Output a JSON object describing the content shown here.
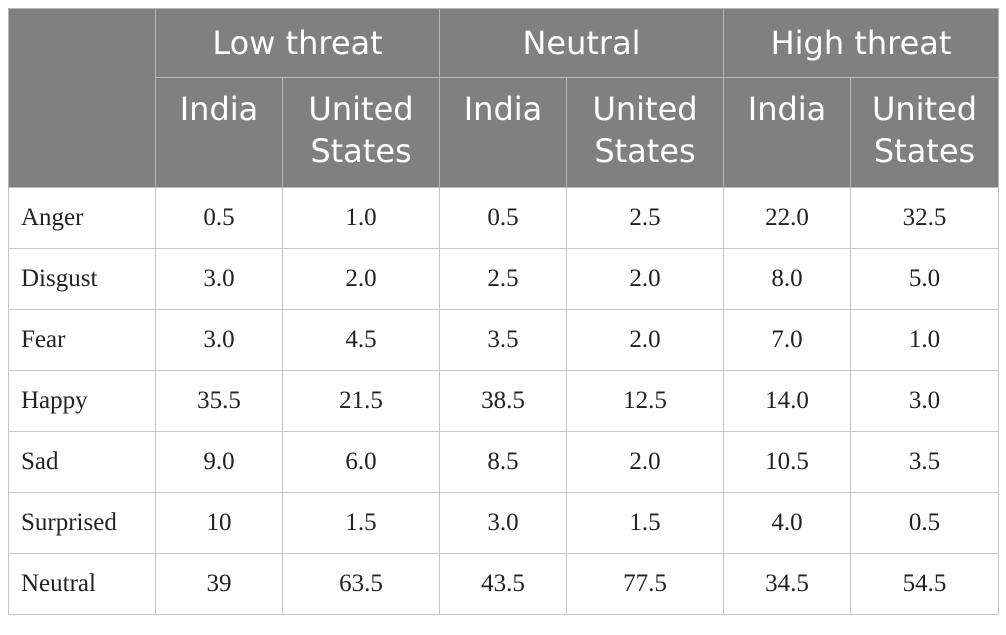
{
  "header": {
    "groups": [
      "Low threat",
      "Neutral",
      "High threat"
    ],
    "subcolumns": [
      "India",
      "United\nStates",
      "India",
      "United\nStates",
      "India",
      "United\nStates"
    ]
  },
  "rows": [
    {
      "label": "Anger",
      "values": [
        "0.5",
        "1.0",
        "0.5",
        "2.5",
        "22.0",
        "32.5"
      ]
    },
    {
      "label": "Disgust",
      "values": [
        "3.0",
        "2.0",
        "2.5",
        "2.0",
        "8.0",
        "5.0"
      ]
    },
    {
      "label": "Fear",
      "values": [
        "3.0",
        "4.5",
        "3.5",
        "2.0",
        "7.0",
        "1.0"
      ]
    },
    {
      "label": "Happy",
      "values": [
        "35.5",
        "21.5",
        "38.5",
        "12.5",
        "14.0",
        "3.0"
      ]
    },
    {
      "label": "Sad",
      "values": [
        "9.0",
        "6.0",
        "8.5",
        "2.0",
        "10.5",
        "3.5"
      ]
    },
    {
      "label": "Surprised",
      "values": [
        "10",
        "1.5",
        "3.0",
        "1.5",
        "4.0",
        "0.5"
      ]
    },
    {
      "label": "Neutral",
      "values": [
        "39",
        "63.5",
        "43.5",
        "77.5",
        "34.5",
        "54.5"
      ]
    }
  ]
}
